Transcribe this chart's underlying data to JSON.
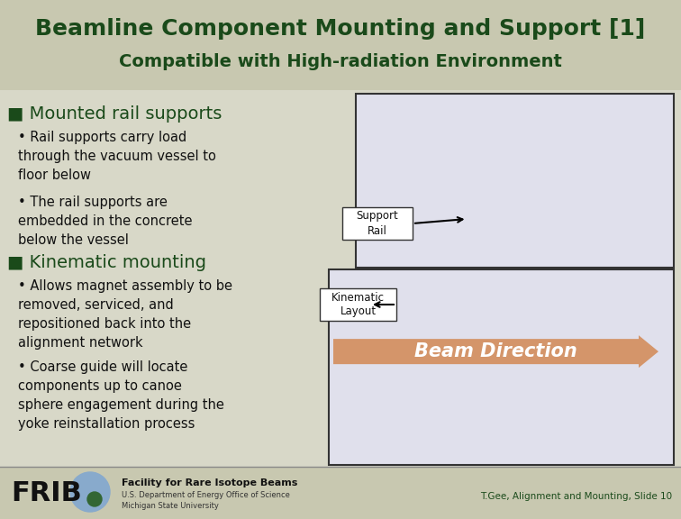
{
  "bg_color": "#d8d8c8",
  "title_bg_color": "#c8c8b0",
  "title_line1": "Beamline Component Mounting and Support [1]",
  "title_line2": "Compatible with High-radiation Environment",
  "title_color": "#1a4a1a",
  "title_fontsize": 18,
  "subtitle_fontsize": 14,
  "section1_header": "■ Mounted rail supports",
  "section1_bullet1": "Rail supports carry load\nthrough the vacuum vessel to\nfloor below",
  "section1_bullet2": "The rail supports are\nembedded in the concrete\nbelow the vessel",
  "section2_header": "■ Kinematic mounting",
  "section2_bullet1": "Allows magnet assembly to be\nremoved, serviced, and\nrepositioned back into the\nalignment network",
  "section2_bullet2": "Coarse guide will locate\ncomponents up to canoe\nsphere engagement during the\nyoke reinstallation process",
  "section_header_fontsize": 14,
  "bullet_fontsize": 10.5,
  "text_color": "#1a4a1a",
  "bullet_color": "#111111",
  "label1": "Support\nRail",
  "label2": "Kinematic\nLayout",
  "label_fontsize": 8.5,
  "beam_direction_text": "Beam Direction",
  "beam_color": "#d4956a",
  "footer_frib": "FRIB",
  "footer_line1": "Facility for Rare Isotope Beams",
  "footer_line2": "U.S. Department of Energy Office of Science",
  "footer_line3": "Michigan State University",
  "footer_right": "T.Gee, Alignment and Mounting, Slide 10",
  "footer_fontsize": 7.5,
  "box_edge_color": "#333333",
  "box_fill_color": "#e0e0ec"
}
